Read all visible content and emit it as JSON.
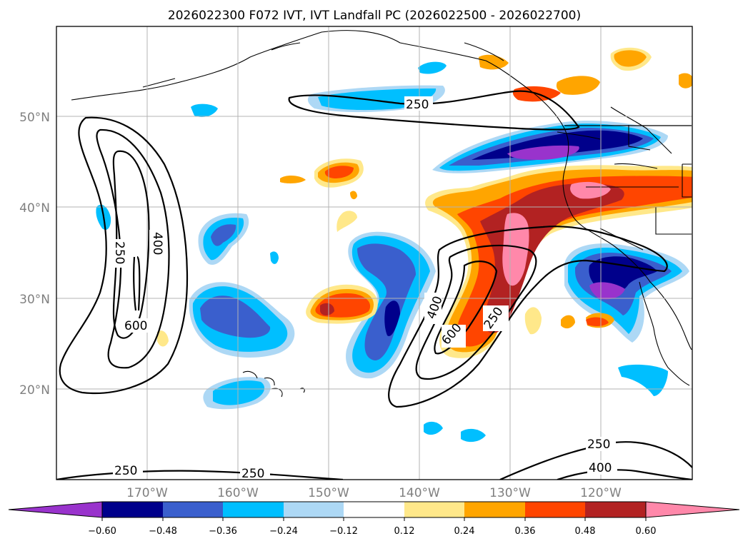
{
  "title": "2026022300 F072 IVT, IVT Landfall PC (2026022500 - 2026022700)",
  "latitude_labels": [
    "50°N",
    "40°N",
    "30°N",
    "20°N"
  ],
  "longitude_labels": [
    "170°W",
    "160°W",
    "150°W",
    "140°W",
    "130°W",
    "120°W"
  ],
  "contour_labels": [
    "250",
    "400",
    "600"
  ],
  "colorbar": {
    "ticks": [
      "−0.60",
      "−0.48",
      "−0.36",
      "−0.24",
      "−0.12",
      "0.12",
      "0.24",
      "0.36",
      "0.48",
      "0.60"
    ],
    "colors": [
      "#9933cc",
      "#00008b",
      "#3a5fcd",
      "#00bfff",
      "#add8f5",
      "#ffffff",
      "#ffe88a",
      "#ffa500",
      "#ff4500",
      "#b22222",
      "#ff88aa"
    ]
  },
  "colors": {
    "purple": "#9933cc",
    "navy": "#00008b",
    "royal_blue": "#3a5fcd",
    "deep_sky": "#00bfff",
    "light_blue": "#add8f5",
    "pale_yellow": "#ffe88a",
    "orange": "#ffa500",
    "orange_red": "#ff4500",
    "firebrick": "#b22222",
    "pink": "#ff88aa"
  }
}
